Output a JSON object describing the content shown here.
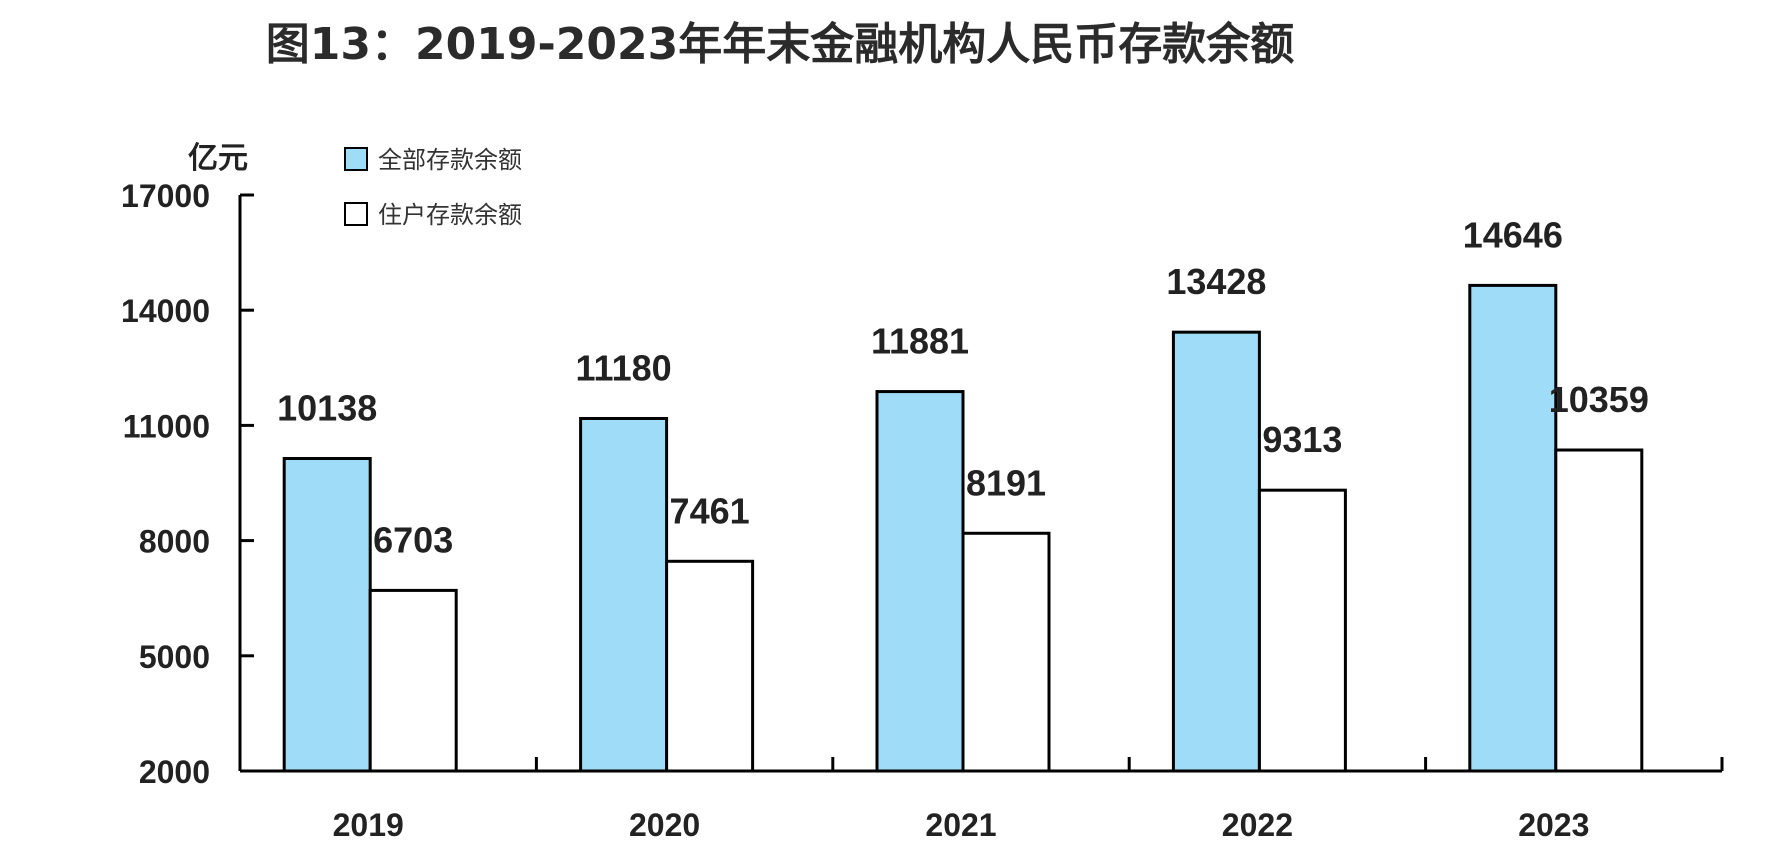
{
  "chart_data": {
    "type": "bar",
    "title": "图13：2019-2023年年末金融机构人民币存款余额",
    "ylabel": "亿元",
    "xlabel": "",
    "categories": [
      "2019",
      "2020",
      "2021",
      "2022",
      "2023"
    ],
    "series": [
      {
        "name": "全部存款余额",
        "values": [
          10138,
          11180,
          11881,
          13428,
          14646
        ],
        "color": "#9fdcf7"
      },
      {
        "name": "住户存款余额",
        "values": [
          6703,
          7461,
          8191,
          9313,
          10359
        ],
        "color": "#ffffff"
      }
    ],
    "ylim": [
      2000,
      17000
    ],
    "yticks": [
      2000,
      5000,
      8000,
      11000,
      14000,
      17000
    ],
    "grid": false,
    "legend_position": "top-left"
  }
}
